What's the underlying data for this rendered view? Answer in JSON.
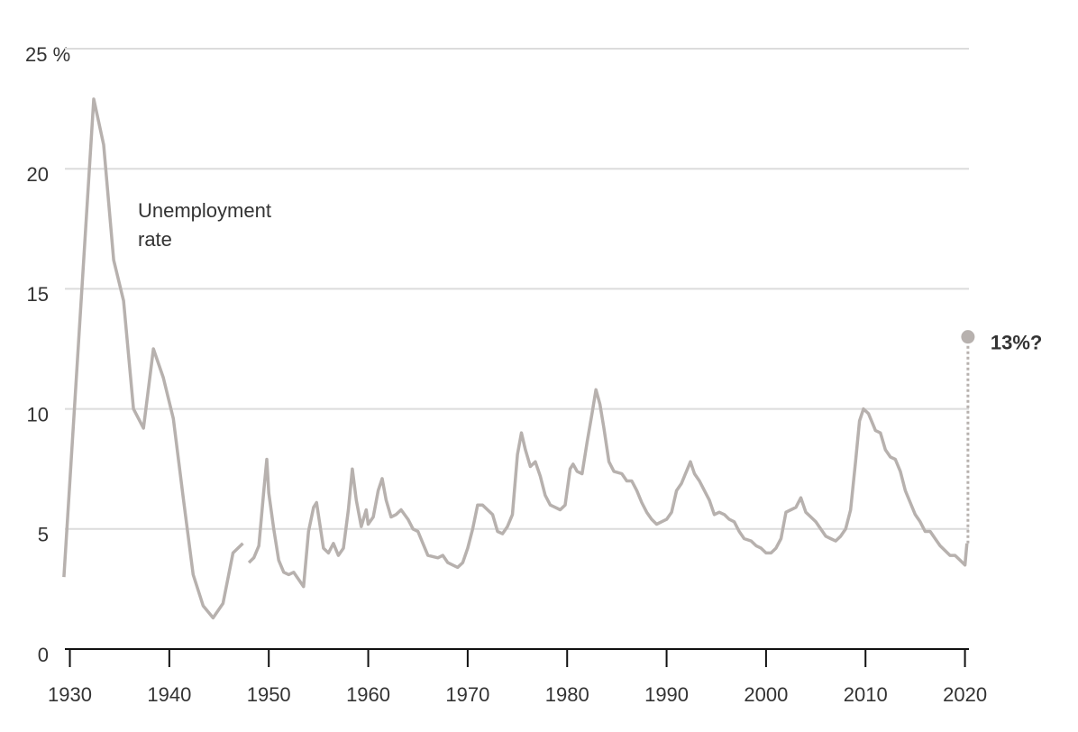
{
  "chart_data": {
    "type": "line",
    "annotation": "Unemployment rate",
    "color": "#b7b1ae",
    "xlim": [
      1929.5,
      2020.4
    ],
    "xticks": [
      1930,
      1940,
      1950,
      1960,
      1970,
      1980,
      1990,
      2000,
      2010,
      2020
    ],
    "ylim": [
      0,
      25
    ],
    "yticks": [
      0,
      5,
      10,
      15,
      20,
      {
        "value": 25,
        "label": "25 %"
      }
    ],
    "grid": true,
    "x": [
      1929.4,
      1932.4,
      1933.4,
      1934.4,
      1935.4,
      1936.4,
      1937.4,
      1938.4,
      1939.4,
      1940.4,
      1941.4,
      1942.4,
      1943.4,
      1944.4,
      1945.4,
      1946.4,
      1947.4,
      1947.7,
      1948.0,
      1948.5,
      1949.0,
      1949.5,
      1949.8,
      1950.0,
      1950.5,
      1951.0,
      1951.5,
      1952.0,
      1952.5,
      1953.0,
      1953.5,
      1954.0,
      1954.5,
      1954.8,
      1955.5,
      1956.0,
      1956.5,
      1957.0,
      1957.5,
      1958.0,
      1958.4,
      1958.8,
      1959.3,
      1959.8,
      1960.0,
      1960.5,
      1961.0,
      1961.4,
      1961.8,
      1962.3,
      1962.8,
      1963.3,
      1964.0,
      1964.5,
      1965.0,
      1965.5,
      1966.0,
      1967.0,
      1967.5,
      1968.0,
      1968.5,
      1969.0,
      1969.5,
      1970.0,
      1970.5,
      1971.0,
      1971.5,
      1972.0,
      1972.5,
      1973.0,
      1973.5,
      1974.0,
      1974.5,
      1975.0,
      1975.4,
      1975.8,
      1976.3,
      1976.8,
      1977.3,
      1977.8,
      1978.3,
      1978.8,
      1979.3,
      1979.8,
      1980.3,
      1980.6,
      1981.0,
      1981.5,
      1982.0,
      1982.5,
      1982.9,
      1983.3,
      1983.7,
      1984.2,
      1984.7,
      1985.5,
      1986.0,
      1986.5,
      1987.0,
      1987.5,
      1988.0,
      1988.5,
      1989.0,
      1989.5,
      1990.0,
      1990.5,
      1991.0,
      1991.5,
      1992.4,
      1992.8,
      1993.3,
      1993.8,
      1994.3,
      1994.8,
      1995.3,
      1995.8,
      1996.3,
      1996.8,
      1997.3,
      1997.8,
      1998.5,
      1999.0,
      1999.5,
      2000.0,
      2000.5,
      2001.0,
      2001.5,
      2002.0,
      2002.5,
      2003.0,
      2003.5,
      2004.0,
      2004.5,
      2005.0,
      2005.5,
      2006.0,
      2006.5,
      2007.0,
      2007.5,
      2008.0,
      2008.5,
      2009.0,
      2009.4,
      2009.8,
      2010.3,
      2010.7,
      2011.0,
      2011.5,
      2012.0,
      2012.5,
      2013.0,
      2013.5,
      2014.0,
      2014.5,
      2015.0,
      2015.5,
      2016.0,
      2016.5,
      2017.0,
      2017.5,
      2018.0,
      2018.5,
      2019.0,
      2019.5,
      2020.0,
      2020.2
    ],
    "values": [
      3.0,
      22.9,
      21.0,
      16.2,
      14.5,
      10.0,
      9.2,
      12.5,
      11.3,
      9.6,
      6.3,
      3.1,
      1.8,
      1.3,
      1.9,
      4.0,
      4.4,
      null,
      3.6,
      3.8,
      4.3,
      6.6,
      7.9,
      6.5,
      5.0,
      3.7,
      3.2,
      3.1,
      3.2,
      2.9,
      2.6,
      4.9,
      5.9,
      6.1,
      4.2,
      4.0,
      4.4,
      3.9,
      4.2,
      5.8,
      7.5,
      6.2,
      5.1,
      5.8,
      5.2,
      5.5,
      6.6,
      7.1,
      6.2,
      5.5,
      5.6,
      5.8,
      5.4,
      5.0,
      4.9,
      4.4,
      3.9,
      3.8,
      3.9,
      3.6,
      3.5,
      3.4,
      3.6,
      4.2,
      5.0,
      6.0,
      6.0,
      5.8,
      5.6,
      4.9,
      4.8,
      5.1,
      5.6,
      8.1,
      9.0,
      8.3,
      7.6,
      7.8,
      7.2,
      6.4,
      6.0,
      5.9,
      5.8,
      6.0,
      7.5,
      7.7,
      7.4,
      7.3,
      8.6,
      9.8,
      10.8,
      10.2,
      9.2,
      7.8,
      7.4,
      7.3,
      7.0,
      7.0,
      6.6,
      6.1,
      5.7,
      5.4,
      5.2,
      5.3,
      5.4,
      5.7,
      6.6,
      6.9,
      7.8,
      7.3,
      7.0,
      6.6,
      6.2,
      5.6,
      5.7,
      5.6,
      5.4,
      5.3,
      4.9,
      4.6,
      4.5,
      4.3,
      4.2,
      4.0,
      4.0,
      4.2,
      4.6,
      5.7,
      5.8,
      5.9,
      6.3,
      5.7,
      5.5,
      5.3,
      5.0,
      4.7,
      4.6,
      4.5,
      4.7,
      5.0,
      5.8,
      7.8,
      9.5,
      10.0,
      9.8,
      9.4,
      9.1,
      9.0,
      8.3,
      8.0,
      7.9,
      7.4,
      6.6,
      6.1,
      5.6,
      5.3,
      4.9,
      4.9,
      4.6,
      4.3,
      4.1,
      3.9,
      3.9,
      3.7,
      3.5,
      4.4
    ],
    "projection": {
      "x": 2020.3,
      "value": 13,
      "label": "13%?"
    }
  }
}
